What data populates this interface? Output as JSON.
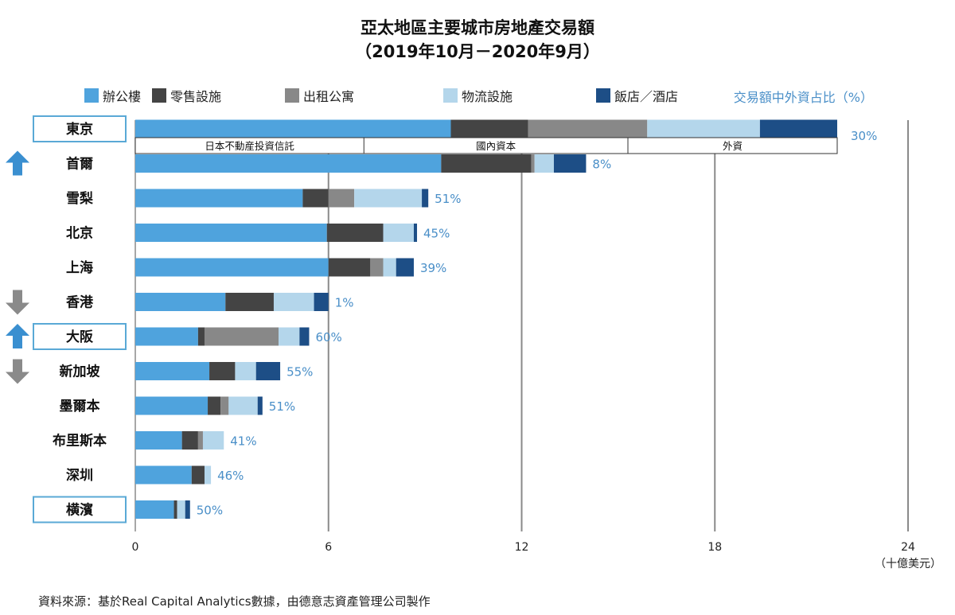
{
  "chart_data": {
    "type": "bar",
    "orientation": "horizontal",
    "stacked": true,
    "title": "亞太地區主要城市房地產交易額",
    "subtitle": "（2019年10月－2020年9月）",
    "unit_label": "（十億美元）",
    "share_header": "交易額中外資占比（%）",
    "source": "資料來源：基於Real Capital Analytics數據，由德意志資產管理公司製作",
    "xlim": [
      0,
      24
    ],
    "xticks": [
      0,
      6,
      12,
      18,
      24
    ],
    "grid": true,
    "legend_position": "top",
    "series": [
      {
        "name": "辦公樓",
        "color": "#4fa3dd"
      },
      {
        "name": "零售設施",
        "color": "#444444"
      },
      {
        "name": "出租公寓",
        "color": "#888888"
      },
      {
        "name": "物流設施",
        "color": "#b4d6eb"
      },
      {
        "name": "飯店／酒店",
        "color": "#1d4e86"
      }
    ],
    "categories": [
      {
        "city": "東京",
        "values": [
          9.8,
          2.4,
          3.7,
          3.5,
          2.4
        ],
        "foreign_share": "30%",
        "boxed": true,
        "arrow": ""
      },
      {
        "city": "首爾",
        "values": [
          9.5,
          2.8,
          0.1,
          0.6,
          1.0
        ],
        "foreign_share": "8%",
        "boxed": false,
        "arrow": "up"
      },
      {
        "city": "雪梨",
        "values": [
          5.2,
          0.8,
          0.8,
          2.1,
          0.2
        ],
        "foreign_share": "51%",
        "boxed": false,
        "arrow": ""
      },
      {
        "city": "北京",
        "values": [
          5.95,
          1.75,
          0.0,
          0.95,
          0.1
        ],
        "foreign_share": "45%",
        "boxed": false,
        "arrow": ""
      },
      {
        "city": "上海",
        "values": [
          6.0,
          1.3,
          0.4,
          0.4,
          0.55
        ],
        "foreign_share": "39%",
        "boxed": false,
        "arrow": ""
      },
      {
        "city": "香港",
        "values": [
          2.8,
          1.5,
          0.0,
          1.25,
          0.45
        ],
        "foreign_share": "1%",
        "boxed": false,
        "arrow": "down"
      },
      {
        "city": "大阪",
        "values": [
          1.95,
          0.2,
          2.3,
          0.65,
          0.3
        ],
        "foreign_share": "60%",
        "boxed": true,
        "arrow": "up"
      },
      {
        "city": "新加坡",
        "values": [
          2.3,
          0.8,
          0.0,
          0.65,
          0.75
        ],
        "foreign_share": "55%",
        "boxed": false,
        "arrow": "down"
      },
      {
        "city": "墨爾本",
        "values": [
          2.25,
          0.4,
          0.25,
          0.9,
          0.15
        ],
        "foreign_share": "51%",
        "boxed": false,
        "arrow": ""
      },
      {
        "city": "布里斯本",
        "values": [
          1.45,
          0.5,
          0.15,
          0.65,
          0.0
        ],
        "foreign_share": "41%",
        "boxed": false,
        "arrow": ""
      },
      {
        "city": "深圳",
        "values": [
          1.75,
          0.4,
          0.0,
          0.2,
          0.0
        ],
        "foreign_share": "46%",
        "boxed": false,
        "arrow": ""
      },
      {
        "city": "横濱",
        "values": [
          1.2,
          0.1,
          0.0,
          0.25,
          0.15
        ],
        "foreign_share": "50%",
        "boxed": true,
        "arrow": ""
      }
    ],
    "tokyo_breakdown": [
      {
        "label": "日本不動産投資信託",
        "end": 7.1
      },
      {
        "label": "國內資本",
        "end": 15.3
      },
      {
        "label": "外資",
        "end": 21.8
      }
    ]
  }
}
